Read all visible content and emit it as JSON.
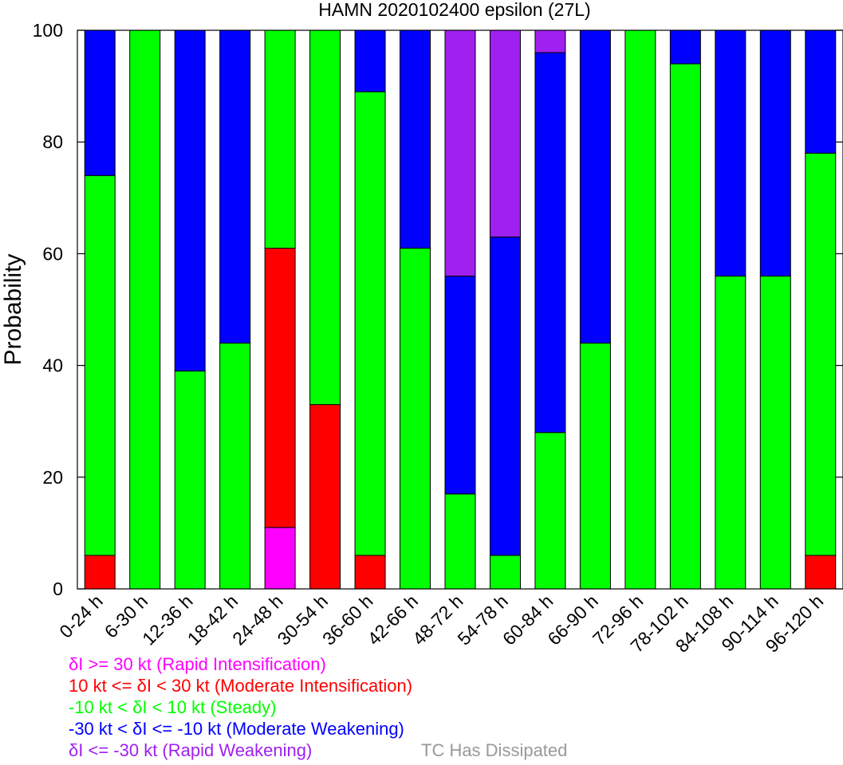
{
  "chart_data": {
    "type": "bar",
    "stacked": true,
    "title": "HAMN 2020102400 epsilon (27L)",
    "xlabel": "",
    "ylabel": "Probability",
    "ylim": [
      0,
      100
    ],
    "yticks": [
      "0",
      "20",
      "40",
      "60",
      "80",
      "100"
    ],
    "grid": false,
    "categories": [
      "0-24 h",
      "6-30 h",
      "12-36 h",
      "18-42 h",
      "24-48 h",
      "30-54 h",
      "36-60 h",
      "42-66 h",
      "48-72 h",
      "54-78 h",
      "60-84 h",
      "66-90 h",
      "72-96 h",
      "78-102 h",
      "84-108 h",
      "90-114 h",
      "96-120 h"
    ],
    "series": [
      {
        "name": "δI >= 30 kt (Rapid Intensification)",
        "color": "#ff00ff",
        "values": [
          0,
          0,
          0,
          0,
          11,
          0,
          0,
          0,
          0,
          0,
          0,
          0,
          0,
          0,
          0,
          0,
          0
        ]
      },
      {
        "name": "10 kt <= δI < 30 kt (Moderate Intensification)",
        "color": "#ff0000",
        "values": [
          6,
          0,
          0,
          0,
          50,
          33,
          6,
          0,
          0,
          0,
          0,
          0,
          0,
          0,
          0,
          0,
          6
        ]
      },
      {
        "name": "-10 kt < δI < 10 kt (Steady)",
        "color": "#00ff00",
        "values": [
          68,
          100,
          39,
          44,
          39,
          67,
          83,
          61,
          17,
          6,
          28,
          44,
          100,
          94,
          56,
          56,
          72
        ]
      },
      {
        "name": "-30 kt < δI <= -10 kt (Moderate Weakening)",
        "color": "#0000ff",
        "values": [
          26,
          0,
          61,
          56,
          0,
          0,
          11,
          39,
          39,
          57,
          68,
          56,
          0,
          6,
          44,
          44,
          22
        ]
      },
      {
        "name": "δI <= -30 kt (Rapid Weakening)",
        "color": "#a020f0",
        "values": [
          0,
          0,
          0,
          0,
          0,
          0,
          0,
          0,
          44,
          37,
          4,
          0,
          0,
          0,
          0,
          0,
          0
        ]
      }
    ]
  },
  "legend": {
    "items": [
      {
        "label": "δI >= 30 kt (Rapid Intensification)",
        "color": "#ff00ff"
      },
      {
        "label": "10 kt <= δI < 30 kt (Moderate Intensification)",
        "color": "#ff0000"
      },
      {
        "label": "-10 kt < δI < 10 kt (Steady)",
        "color": "#00ff00"
      },
      {
        "label": "-30 kt < δI <= -10 kt (Moderate Weakening)",
        "color": "#0000ff"
      },
      {
        "label": "δI <= -30 kt (Rapid Weakening)",
        "color": "#a020f0"
      }
    ],
    "dissipated_label": "TC Has Dissipated",
    "dissipated_color": "#999999"
  }
}
